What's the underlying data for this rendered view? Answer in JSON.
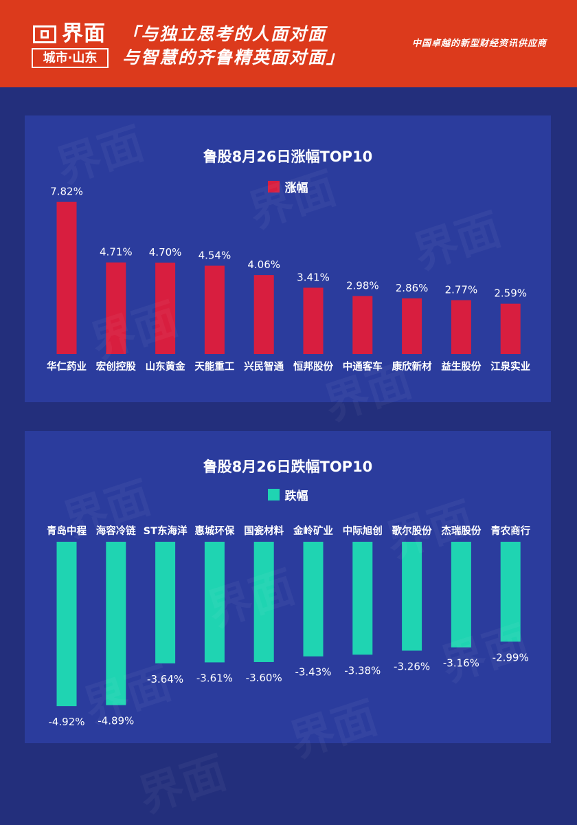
{
  "header": {
    "brand": "界面",
    "city": "城市·山东",
    "slogan_line1": "「与独立思考的人面对面",
    "slogan_line2": "与智慧的齐鲁精英面对面」",
    "tagline": "中国卓越的新型财经资讯供应商",
    "bg_color": "#dc3a1c"
  },
  "chart_data": [
    {
      "type": "bar",
      "title": "鲁股8月26日涨幅TOP10",
      "legend": "涨幅",
      "color": "#d81e3f",
      "categories": [
        "华仁药业",
        "宏创控股",
        "山东黄金",
        "天能重工",
        "兴民智通",
        "恒邦股份",
        "中通客车",
        "康欣新材",
        "益生股份",
        "江泉实业"
      ],
      "values": [
        7.82,
        4.71,
        4.7,
        4.54,
        4.06,
        3.41,
        2.98,
        2.86,
        2.77,
        2.59
      ],
      "labels": [
        "7.82%",
        "4.71%",
        "4.70%",
        "4.54%",
        "4.06%",
        "3.41%",
        "2.98%",
        "2.86%",
        "2.77%",
        "2.59%"
      ]
    },
    {
      "type": "bar",
      "title": "鲁股8月26日跌幅TOP10",
      "legend": "跌幅",
      "color": "#1fd4b2",
      "categories": [
        "青岛中程",
        "海容冷链",
        "ST东海洋",
        "惠城环保",
        "国瓷材料",
        "金岭矿业",
        "中际旭创",
        "歌尔股份",
        "杰瑞股份",
        "青农商行"
      ],
      "values": [
        -4.92,
        -4.89,
        -3.64,
        -3.61,
        -3.6,
        -3.43,
        -3.38,
        -3.26,
        -3.16,
        -2.99
      ],
      "labels": [
        "-4.92%",
        "-4.89%",
        "-3.64%",
        "-3.61%",
        "-3.60%",
        "-3.43%",
        "-3.38%",
        "-3.26%",
        "-3.16%",
        "-2.99%"
      ]
    }
  ]
}
